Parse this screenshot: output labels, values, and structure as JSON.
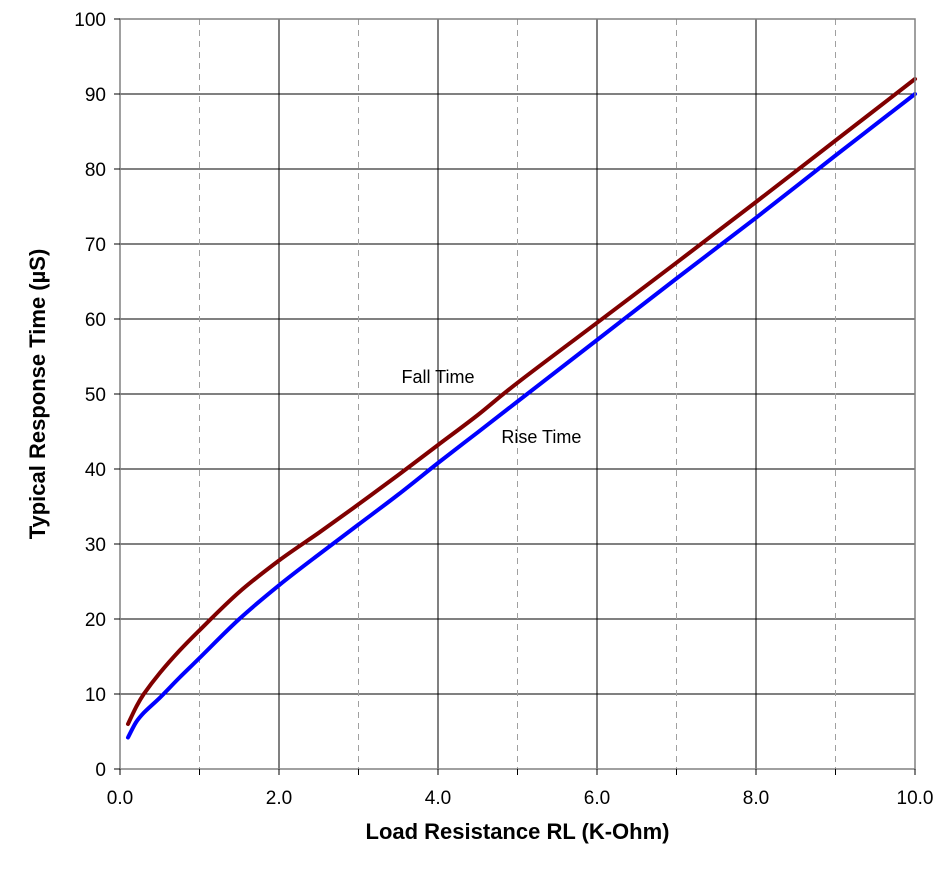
{
  "chart_data": {
    "type": "line",
    "title": "",
    "xlabel": "Load Resistance RL (K-Ohm)",
    "ylabel": "Typical Response Time (µS)",
    "xlim": [
      0,
      10
    ],
    "ylim": [
      0,
      100
    ],
    "x_major_ticks": [
      0,
      2,
      4,
      6,
      8,
      10
    ],
    "x_tick_labels": [
      "0.0",
      "2.0",
      "4.0",
      "6.0",
      "8.0",
      "10.0"
    ],
    "x_minor_gridlines": [
      1,
      3,
      5,
      7,
      9
    ],
    "y_ticks": [
      0,
      10,
      20,
      30,
      40,
      50,
      60,
      70,
      80,
      90,
      100
    ],
    "y_tick_labels": [
      "0",
      "10",
      "20",
      "30",
      "40",
      "50",
      "60",
      "70",
      "80",
      "90",
      "100"
    ],
    "grid": true,
    "legend": "none",
    "series": [
      {
        "name": "Fall Time",
        "color": "#800000",
        "x": [
          0.1,
          0.2,
          0.3,
          0.5,
          0.75,
          1.0,
          1.5,
          2.0,
          2.5,
          3.0,
          3.5,
          4.0,
          4.5,
          5.0,
          6.0,
          7.0,
          8.0,
          9.0,
          10.0
        ],
        "y": [
          6,
          8.2,
          10,
          12.8,
          15.8,
          18.5,
          23.6,
          27.8,
          31.5,
          35.3,
          39.2,
          43.2,
          47.2,
          51.5,
          59.5,
          67.5,
          75.6,
          83.8,
          92
        ]
      },
      {
        "name": "Rise Time",
        "color": "#0000ff",
        "x": [
          0.1,
          0.2,
          0.3,
          0.5,
          0.75,
          1.0,
          1.5,
          2.0,
          2.5,
          3.0,
          3.5,
          4.0,
          4.5,
          5.0,
          6.0,
          7.0,
          8.0,
          9.0,
          10.0
        ],
        "y": [
          4.2,
          6.2,
          7.5,
          9.5,
          12.2,
          14.8,
          20,
          24.5,
          28.6,
          32.6,
          36.6,
          40.8,
          44.9,
          49,
          57.2,
          65.4,
          73.5,
          81.8,
          90
        ]
      }
    ],
    "annotations": [
      {
        "text": "Fall Time",
        "x": 4.0,
        "y": 51.5
      },
      {
        "text": "Rise Time",
        "x": 5.3,
        "y": 43.5
      }
    ]
  }
}
